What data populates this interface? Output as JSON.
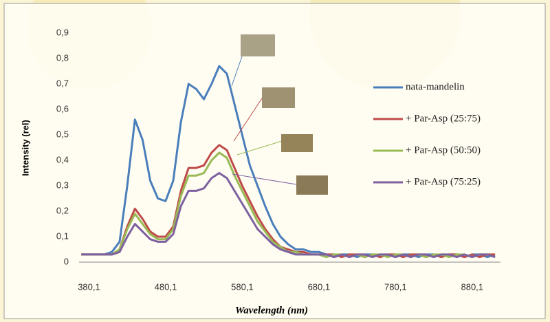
{
  "chart_data": {
    "type": "line",
    "y_label": "Intensity (rel)",
    "x_label": "Wavelength (nm)",
    "xlim": [
      367.1,
      917.1
    ],
    "ylim": [
      0,
      0.9
    ],
    "xticks": [
      {
        "value": 380.1,
        "label": "380,1"
      },
      {
        "value": 480.1,
        "label": "480,1"
      },
      {
        "value": 580.1,
        "label": "580,1"
      },
      {
        "value": 680.1,
        "label": "680,1"
      },
      {
        "value": 780.1,
        "label": "780,1"
      },
      {
        "value": 880.1,
        "label": "880,1"
      }
    ],
    "yticks": [
      0,
      {
        "value": 0.1,
        "label": "0,1"
      },
      {
        "value": 0.2,
        "label": "0,2"
      },
      {
        "value": 0.3,
        "label": "0,3"
      },
      {
        "value": 0.4,
        "label": "0,4"
      },
      {
        "value": 0.5,
        "label": "0,5"
      },
      {
        "value": 0.6,
        "label": "0,6"
      },
      {
        "value": 0.7,
        "label": "0,7"
      },
      {
        "value": 0.8,
        "label": "0,8"
      },
      {
        "value": 0.9,
        "label": "0,9"
      }
    ],
    "grid": false,
    "legend": "right",
    "x": [
      370,
      380,
      390,
      400,
      410,
      420,
      430,
      440,
      450,
      460,
      470,
      480,
      490,
      500,
      510,
      520,
      530,
      540,
      550,
      560,
      570,
      580,
      590,
      600,
      610,
      620,
      630,
      640,
      650,
      660,
      670,
      680,
      690,
      700,
      710,
      720,
      730,
      740,
      750,
      760,
      770,
      780,
      790,
      800,
      810,
      820,
      830,
      840,
      850,
      860,
      870,
      880,
      890,
      900,
      910
    ],
    "series": [
      {
        "name": "nata-mandelin",
        "color": "#4a7ebb",
        "values": [
          0.03,
          0.03,
          0.03,
          0.03,
          0.04,
          0.08,
          0.3,
          0.56,
          0.48,
          0.32,
          0.25,
          0.24,
          0.32,
          0.55,
          0.7,
          0.68,
          0.64,
          0.7,
          0.77,
          0.74,
          0.62,
          0.5,
          0.38,
          0.3,
          0.22,
          0.15,
          0.1,
          0.07,
          0.05,
          0.05,
          0.04,
          0.04,
          0.03,
          0.02,
          0.03,
          0.03,
          0.02,
          0.03,
          0.03,
          0.02,
          0.03,
          0.02,
          0.03,
          0.03,
          0.02,
          0.03,
          0.03,
          0.02,
          0.03,
          0.03,
          0.02,
          0.03,
          0.03,
          0.02,
          0.03
        ]
      },
      {
        "name": "+ Par-Asp (25:75)",
        "color": "#be4b48",
        "values": [
          0.03,
          0.03,
          0.03,
          0.03,
          0.03,
          0.05,
          0.14,
          0.21,
          0.17,
          0.12,
          0.1,
          0.1,
          0.14,
          0.28,
          0.37,
          0.37,
          0.38,
          0.43,
          0.46,
          0.44,
          0.37,
          0.3,
          0.24,
          0.18,
          0.13,
          0.09,
          0.06,
          0.05,
          0.04,
          0.04,
          0.03,
          0.03,
          0.03,
          0.03,
          0.02,
          0.03,
          0.03,
          0.02,
          0.03,
          0.02,
          0.03,
          0.03,
          0.02,
          0.03,
          0.03,
          0.02,
          0.03,
          0.02,
          0.03,
          0.03,
          0.02,
          0.03,
          0.02,
          0.03,
          0.03
        ]
      },
      {
        "name": "+ Par-Asp (50:50)",
        "color": "#98b954",
        "values": [
          0.03,
          0.03,
          0.03,
          0.03,
          0.03,
          0.05,
          0.13,
          0.19,
          0.15,
          0.11,
          0.09,
          0.09,
          0.13,
          0.26,
          0.34,
          0.34,
          0.35,
          0.4,
          0.43,
          0.41,
          0.34,
          0.28,
          0.22,
          0.16,
          0.12,
          0.08,
          0.06,
          0.04,
          0.04,
          0.03,
          0.03,
          0.03,
          0.02,
          0.03,
          0.03,
          0.02,
          0.03,
          0.02,
          0.03,
          0.03,
          0.02,
          0.03,
          0.03,
          0.02,
          0.03,
          0.02,
          0.03,
          0.03,
          0.02,
          0.03,
          0.03,
          0.02,
          0.03,
          0.03,
          0.02
        ]
      },
      {
        "name": "+ Par-Asp (75:25)",
        "color": "#7d60a0",
        "values": [
          0.03,
          0.03,
          0.03,
          0.03,
          0.03,
          0.04,
          0.1,
          0.15,
          0.12,
          0.09,
          0.08,
          0.08,
          0.11,
          0.22,
          0.28,
          0.28,
          0.29,
          0.33,
          0.35,
          0.33,
          0.28,
          0.23,
          0.18,
          0.13,
          0.1,
          0.07,
          0.05,
          0.04,
          0.03,
          0.03,
          0.03,
          0.03,
          0.03,
          0.02,
          0.03,
          0.02,
          0.03,
          0.03,
          0.02,
          0.03,
          0.03,
          0.02,
          0.03,
          0.02,
          0.03,
          0.03,
          0.02,
          0.03,
          0.03,
          0.02,
          0.03,
          0.02,
          0.03,
          0.03,
          0.02
        ]
      }
    ]
  }
}
